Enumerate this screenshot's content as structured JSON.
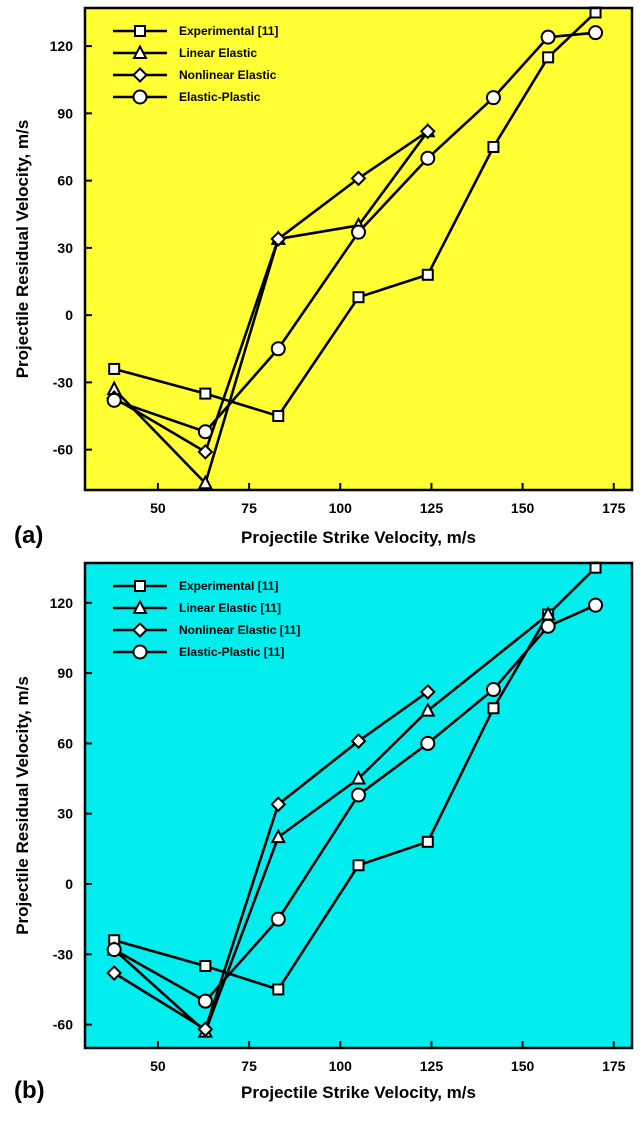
{
  "figure": {
    "panels": [
      {
        "panel_label": "(a)",
        "background": "#ffff33",
        "line_color": "#000000"
      },
      {
        "panel_label": "(b)",
        "background": "#00eeee",
        "line_color": "#000000"
      }
    ]
  },
  "chart_data": [
    {
      "type": "line",
      "title": "",
      "xlabel": "Projectile Strike Velocity, m/s",
      "ylabel": "Projectile Residual Velocity, m/s",
      "xlim": [
        30,
        180
      ],
      "ylim": [
        -78,
        137
      ],
      "xticks": [
        50,
        75,
        100,
        125,
        150,
        175
      ],
      "yticks": [
        -60,
        -30,
        0,
        30,
        60,
        90,
        120
      ],
      "grid": false,
      "legend_position": "top-left",
      "series": [
        {
          "name": "Experimental [11]",
          "marker": "square",
          "x": [
            38,
            63,
            83,
            105,
            124,
            142,
            157,
            170
          ],
          "y": [
            -24,
            -35,
            -45,
            8,
            18,
            75,
            115,
            135
          ]
        },
        {
          "name": "Linear Elastic",
          "marker": "triangle",
          "x": [
            38,
            63,
            83,
            105,
            124
          ],
          "y": [
            -33,
            -75,
            34,
            40,
            82
          ]
        },
        {
          "name": "Nonlinear Elastic",
          "marker": "diamond",
          "x": [
            38,
            63,
            83,
            105,
            124
          ],
          "y": [
            -37,
            -61,
            34,
            61,
            82
          ]
        },
        {
          "name": "Elastic-Plastic",
          "marker": "circle",
          "x": [
            38,
            63,
            83,
            105,
            124,
            142,
            157,
            170
          ],
          "y": [
            -38,
            -52,
            -15,
            37,
            70,
            97,
            124,
            126
          ]
        }
      ]
    },
    {
      "type": "line",
      "title": "",
      "xlabel": "Projectile Strike Velocity, m/s",
      "ylabel": "Projectile Residual Velocity, m/s",
      "xlim": [
        30,
        180
      ],
      "ylim": [
        -70,
        137
      ],
      "xticks": [
        50,
        75,
        100,
        125,
        150,
        175
      ],
      "yticks": [
        -60,
        -30,
        0,
        30,
        60,
        90,
        120
      ],
      "grid": false,
      "legend_position": "top-left",
      "series": [
        {
          "name": "Experimental [11]",
          "marker": "square",
          "x": [
            38,
            63,
            83,
            105,
            124,
            142,
            157,
            170
          ],
          "y": [
            -24,
            -35,
            -45,
            8,
            18,
            75,
            115,
            135
          ]
        },
        {
          "name": "Linear Elastic [11]",
          "marker": "triangle",
          "x": [
            38,
            63,
            83,
            105,
            124,
            157
          ],
          "y": [
            -28,
            -63,
            20,
            45,
            74,
            115
          ]
        },
        {
          "name": "Nonlinear Elastic [11]",
          "marker": "diamond",
          "x": [
            38,
            63,
            83,
            105,
            124
          ],
          "y": [
            -38,
            -62,
            34,
            61,
            82
          ]
        },
        {
          "name": "Elastic-Plastic [11]",
          "marker": "circle",
          "x": [
            38,
            63,
            83,
            105,
            124,
            142,
            157,
            170
          ],
          "y": [
            -28,
            -50,
            -15,
            38,
            60,
            83,
            110,
            119
          ]
        }
      ]
    }
  ]
}
